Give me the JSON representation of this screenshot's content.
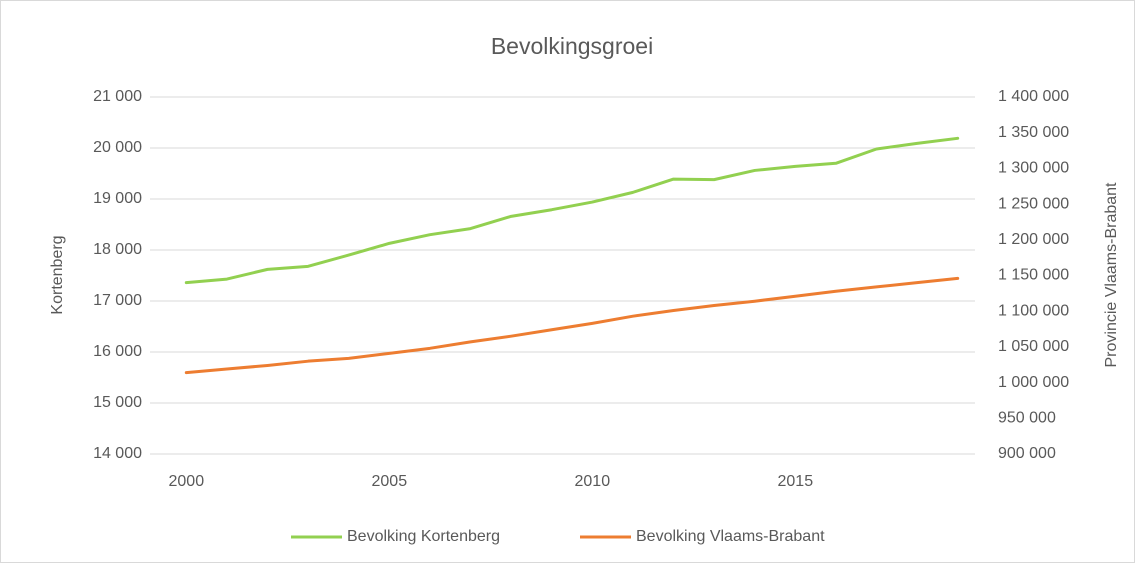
{
  "chart_data": {
    "type": "line",
    "title": "Bevolkingsgroei",
    "y_label": "Kortenberg",
    "y2_label": "Provincie Vlaams-Brabant",
    "x": [
      2000,
      2001,
      2002,
      2003,
      2004,
      2005,
      2006,
      2007,
      2008,
      2009,
      2010,
      2011,
      2012,
      2013,
      2014,
      2015,
      2016,
      2017,
      2018,
      2019
    ],
    "xlim": [
      1999.5,
      2019.5
    ],
    "xticks": [
      2000,
      2005,
      2010,
      2015
    ],
    "ylim": [
      14000,
      21000
    ],
    "yticks": [
      {
        "value": 14000,
        "label": "14 000"
      },
      {
        "value": 15000,
        "label": "15 000"
      },
      {
        "value": 16000,
        "label": "16 000"
      },
      {
        "value": 17000,
        "label": "17 000"
      },
      {
        "value": 18000,
        "label": "18 000"
      },
      {
        "value": 19000,
        "label": "19 000"
      },
      {
        "value": 20000,
        "label": "20 000"
      },
      {
        "value": 21000,
        "label": "21 000"
      }
    ],
    "y2lim": [
      900000,
      1400000
    ],
    "y2ticks": [
      {
        "value": 900000,
        "label": "900 000"
      },
      {
        "value": 950000,
        "label": "950 000"
      },
      {
        "value": 1000000,
        "label": "1 000 000"
      },
      {
        "value": 1050000,
        "label": "1 050 000"
      },
      {
        "value": 1100000,
        "label": "1 100 000"
      },
      {
        "value": 1150000,
        "label": "1 150 000"
      },
      {
        "value": 1200000,
        "label": "1 200 000"
      },
      {
        "value": 1250000,
        "label": "1 250 000"
      },
      {
        "value": 1300000,
        "label": "1 300 000"
      },
      {
        "value": 1350000,
        "label": "1 350 000"
      },
      {
        "value": 1400000,
        "label": "1 400 000"
      }
    ],
    "grid": true,
    "legend": "bottom",
    "series": [
      {
        "name": "Bevolking Kortenberg",
        "color": "#92d050",
        "values": [
          17360,
          17430,
          17620,
          17680,
          17900,
          18130,
          18300,
          18420,
          18660,
          18790,
          18940,
          19130,
          19390,
          19380,
          19560,
          19640,
          19700,
          19980,
          20090,
          20190
        ]
      },
      {
        "name": "Bevolking Vlaams-Brabant",
        "color": "#ed7d31",
        "axis": "y2",
        "values": [
          1014000,
          1019000,
          1024000,
          1030000,
          1034000,
          1041000,
          1048000,
          1057000,
          1065000,
          1074000,
          1083000,
          1093000,
          1101000,
          1108000,
          1114000,
          1121000,
          1128000,
          1134000,
          1140000,
          1146000
        ]
      }
    ]
  }
}
